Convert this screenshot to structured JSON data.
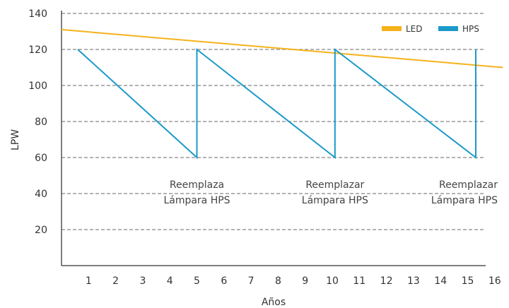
{
  "chart_data": {
    "type": "line",
    "xlabel": "Años",
    "ylabel": "LPW",
    "xlim": [
      0,
      16.5
    ],
    "ylim": [
      0,
      140
    ],
    "xticks": [
      1,
      2,
      3,
      4,
      5,
      6,
      7,
      8,
      9,
      10,
      11,
      12,
      13,
      14,
      15,
      16
    ],
    "yticks": [
      20,
      40,
      60,
      80,
      100,
      120,
      140
    ],
    "grid": true,
    "legend": "top-right",
    "series": [
      {
        "name": "LED",
        "color": "#F5B21B",
        "points": [
          [
            0,
            131
          ],
          [
            16.3,
            110
          ]
        ]
      },
      {
        "name": "HPS",
        "color": "#1B9AC9",
        "points": [
          [
            0.6,
            120
          ],
          [
            5,
            60
          ],
          [
            5,
            120
          ],
          [
            10.1,
            60
          ],
          [
            10.1,
            120
          ],
          [
            15.3,
            60
          ],
          [
            15.3,
            120
          ]
        ]
      }
    ],
    "annotations": [
      {
        "lines": [
          "Reemplaza",
          "Lámpara HPS"
        ],
        "x": 5,
        "y": 40
      },
      {
        "lines": [
          "Reemplazar",
          "Lámpara HPS"
        ],
        "x": 10.1,
        "y": 40
      },
      {
        "lines": [
          "Reemplazar",
          "Lámpara HPS"
        ],
        "x": 15.3,
        "y": 40
      }
    ]
  }
}
